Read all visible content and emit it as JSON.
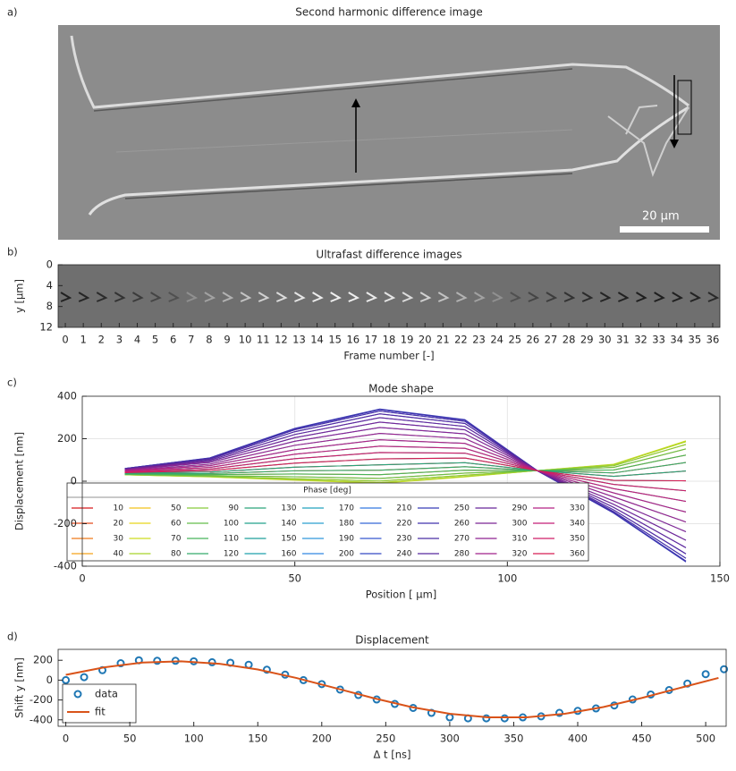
{
  "chart_data": [
    {
      "type": "image",
      "label": "a)",
      "title": "Second harmonic difference image",
      "scale_bar_label": "20 μm"
    },
    {
      "type": "image",
      "label": "b)",
      "title": "Ultrafast difference images",
      "ylabel": "y [μm]",
      "xlabel": "Frame number [-]",
      "ylim": [
        0,
        12
      ],
      "yticks": [
        0,
        4,
        8,
        12
      ],
      "yreverse": true,
      "xlim": [
        -0.4,
        36.4
      ],
      "xticks": [
        0,
        1,
        2,
        3,
        4,
        5,
        6,
        7,
        8,
        9,
        10,
        11,
        12,
        13,
        14,
        15,
        16,
        17,
        18,
        19,
        20,
        21,
        22,
        23,
        24,
        25,
        26,
        27,
        28,
        29,
        30,
        31,
        32,
        33,
        34,
        35,
        36
      ]
    },
    {
      "type": "line",
      "label": "c)",
      "title": "Mode shape",
      "xlabel": "Position [ μm]",
      "ylabel": "Displacement [nm]",
      "xlim": [
        0,
        150
      ],
      "xticks": [
        0,
        50,
        100,
        150
      ],
      "ylim": [
        -400,
        400
      ],
      "yticks": [
        -400,
        -200,
        0,
        200,
        400
      ],
      "grid": true,
      "legend_title": "Phase [deg]",
      "x": [
        10,
        30,
        50,
        70,
        90,
        107,
        125,
        142
      ],
      "series": [
        {
          "name": "10",
          "color": "#d7191c",
          "values": [
            38,
            43,
            66,
            77,
            87,
            50,
            23,
            48
          ]
        },
        {
          "name": "20",
          "color": "#e34a1c",
          "values": [
            35,
            36,
            49,
            52,
            68,
            50,
            39,
            88
          ]
        },
        {
          "name": "30",
          "color": "#ef7a1a",
          "values": [
            34,
            31,
            34,
            31,
            52,
            50,
            53,
            123
          ]
        },
        {
          "name": "40",
          "color": "#f5a21b",
          "values": [
            32,
            26,
            21,
            13,
            38,
            50,
            65,
            152
          ]
        },
        {
          "name": "50",
          "color": "#f2c21a",
          "values": [
            31,
            23,
            12,
            1,
            28,
            50,
            73,
            173
          ]
        },
        {
          "name": "60",
          "color": "#e8d51b",
          "values": [
            30,
            21,
            7,
            -7,
            22,
            50,
            78,
            186
          ]
        },
        {
          "name": "70",
          "color": "#cddc1f",
          "values": [
            30,
            20,
            5,
            -10,
            20,
            50,
            80,
            190
          ]
        },
        {
          "name": "80",
          "color": "#a8d42a",
          "values": [
            30,
            21,
            7,
            -7,
            22,
            50,
            78,
            186
          ]
        },
        {
          "name": "90",
          "color": "#86c93a",
          "values": [
            31,
            23,
            12,
            1,
            28,
            50,
            73,
            173
          ]
        },
        {
          "name": "100",
          "color": "#63be4a",
          "values": [
            32,
            26,
            21,
            13,
            38,
            50,
            65,
            152
          ]
        },
        {
          "name": "110",
          "color": "#48b45a",
          "values": [
            34,
            31,
            34,
            31,
            52,
            50,
            53,
            123
          ]
        },
        {
          "name": "120",
          "color": "#35aa6a",
          "values": [
            35,
            36,
            49,
            52,
            68,
            50,
            39,
            88
          ]
        },
        {
          "name": "130",
          "color": "#2aa37a",
          "values": [
            38,
            43,
            66,
            77,
            87,
            50,
            23,
            48
          ]
        },
        {
          "name": "140",
          "color": "#22a08a",
          "values": [
            40,
            50,
            85,
            105,
            109,
            50,
            4,
            2
          ]
        },
        {
          "name": "150",
          "color": "#1e9f9b",
          "values": [
            42,
            57,
            106,
            135,
            132,
            50,
            -15,
            -45
          ]
        },
        {
          "name": "160",
          "color": "#1ea0ac",
          "values": [
            45,
            65,
            127,
            165,
            155,
            50,
            -35,
            -95
          ]
        },
        {
          "name": "170",
          "color": "#22a2be",
          "values": [
            48,
            73,
            148,
            195,
            178,
            50,
            -55,
            -145
          ]
        },
        {
          "name": "180",
          "color": "#2a9fcf",
          "values": [
            50,
            80,
            169,
            225,
            201,
            50,
            -74,
            -192
          ]
        },
        {
          "name": "190",
          "color": "#3096dc",
          "values": [
            53,
            88,
            188,
            253,
            223,
            50,
            -93,
            -238
          ]
        },
        {
          "name": "200",
          "color": "#3288e2",
          "values": [
            55,
            94,
            205,
            278,
            242,
            50,
            -109,
            -278
          ]
        },
        {
          "name": "210",
          "color": "#3378e0",
          "values": [
            56,
            99,
            220,
            299,
            258,
            50,
            -123,
            -313
          ]
        },
        {
          "name": "220",
          "color": "#3468d8",
          "values": [
            58,
            104,
            233,
            317,
            272,
            50,
            -135,
            -342
          ]
        },
        {
          "name": "230",
          "color": "#3458cf",
          "values": [
            59,
            107,
            242,
            330,
            282,
            50,
            -143,
            -363
          ]
        },
        {
          "name": "240",
          "color": "#3549c4",
          "values": [
            60,
            109,
            247,
            337,
            288,
            50,
            -148,
            -376
          ]
        },
        {
          "name": "250",
          "color": "#383cb8",
          "values": [
            60,
            110,
            249,
            340,
            290,
            50,
            -150,
            -380
          ]
        },
        {
          "name": "260",
          "color": "#4033ad",
          "values": [
            60,
            109,
            247,
            337,
            288,
            50,
            -148,
            -376
          ]
        },
        {
          "name": "270",
          "color": "#4a2ea5",
          "values": [
            59,
            107,
            242,
            330,
            282,
            50,
            -143,
            -363
          ]
        },
        {
          "name": "280",
          "color": "#57299f",
          "values": [
            58,
            104,
            233,
            317,
            272,
            50,
            -135,
            -342
          ]
        },
        {
          "name": "290",
          "color": "#682699",
          "values": [
            56,
            99,
            220,
            299,
            258,
            50,
            -123,
            -313
          ]
        },
        {
          "name": "300",
          "color": "#7a2494",
          "values": [
            55,
            94,
            205,
            278,
            242,
            50,
            -109,
            -278
          ]
        },
        {
          "name": "310",
          "color": "#8d2290",
          "values": [
            53,
            88,
            188,
            253,
            223,
            50,
            -93,
            -238
          ]
        },
        {
          "name": "320",
          "color": "#a0218a",
          "values": [
            50,
            80,
            169,
            225,
            201,
            50,
            -74,
            -192
          ]
        },
        {
          "name": "330",
          "color": "#b32083",
          "values": [
            48,
            73,
            148,
            195,
            178,
            50,
            -55,
            -145
          ]
        },
        {
          "name": "340",
          "color": "#c31f78",
          "values": [
            45,
            65,
            127,
            165,
            155,
            50,
            -35,
            -95
          ]
        },
        {
          "name": "350",
          "color": "#cf1e68",
          "values": [
            42,
            57,
            106,
            135,
            132,
            50,
            -15,
            -45
          ]
        },
        {
          "name": "360",
          "color": "#d81d55",
          "values": [
            40,
            50,
            85,
            105,
            109,
            50,
            4,
            2
          ]
        }
      ]
    },
    {
      "type": "scatter",
      "label": "d)",
      "title": "Displacement",
      "xlabel": "Δ t [ns]",
      "ylabel": "Shift y [nm]",
      "xlim": [
        -6,
        516
      ],
      "xticks": [
        0,
        50,
        100,
        150,
        200,
        250,
        300,
        350,
        400,
        450,
        500
      ],
      "ylim": [
        -465,
        310
      ],
      "yticks": [
        -400,
        -200,
        0,
        200
      ],
      "series": [
        {
          "name": "data",
          "color": "#1f77b4",
          "mode": "markers",
          "x": [
            0,
            14.3,
            28.6,
            42.9,
            57.1,
            71.4,
            85.7,
            100,
            114.3,
            128.6,
            142.9,
            157.1,
            171.4,
            185.7,
            200,
            214.3,
            228.6,
            242.9,
            257.1,
            271.4,
            285.7,
            300,
            314.3,
            328.6,
            342.9,
            357.1,
            371.4,
            385.7,
            400,
            414.3,
            428.6,
            442.9,
            457.1,
            471.4,
            485.7,
            500,
            514.3
          ],
          "values": [
            0,
            30,
            100,
            170,
            200,
            195,
            195,
            190,
            180,
            175,
            155,
            105,
            55,
            0,
            -40,
            -95,
            -150,
            -195,
            -240,
            -280,
            -330,
            -375,
            -385,
            -385,
            -385,
            -375,
            -365,
            -330,
            -310,
            -285,
            -255,
            -195,
            -145,
            -100,
            -35,
            60,
            110
          ]
        },
        {
          "name": "fit",
          "color": "#d95319",
          "mode": "line",
          "x": [
            0,
            30,
            60,
            90,
            120,
            150,
            180,
            210,
            240,
            270,
            300,
            330,
            360,
            390,
            420,
            450,
            480,
            510
          ],
          "values": [
            53,
            129,
            177,
            189,
            165,
            107,
            22,
            -78,
            -180,
            -271,
            -339,
            -375,
            -375,
            -339,
            -271,
            -180,
            -78,
            22
          ]
        }
      ]
    }
  ]
}
